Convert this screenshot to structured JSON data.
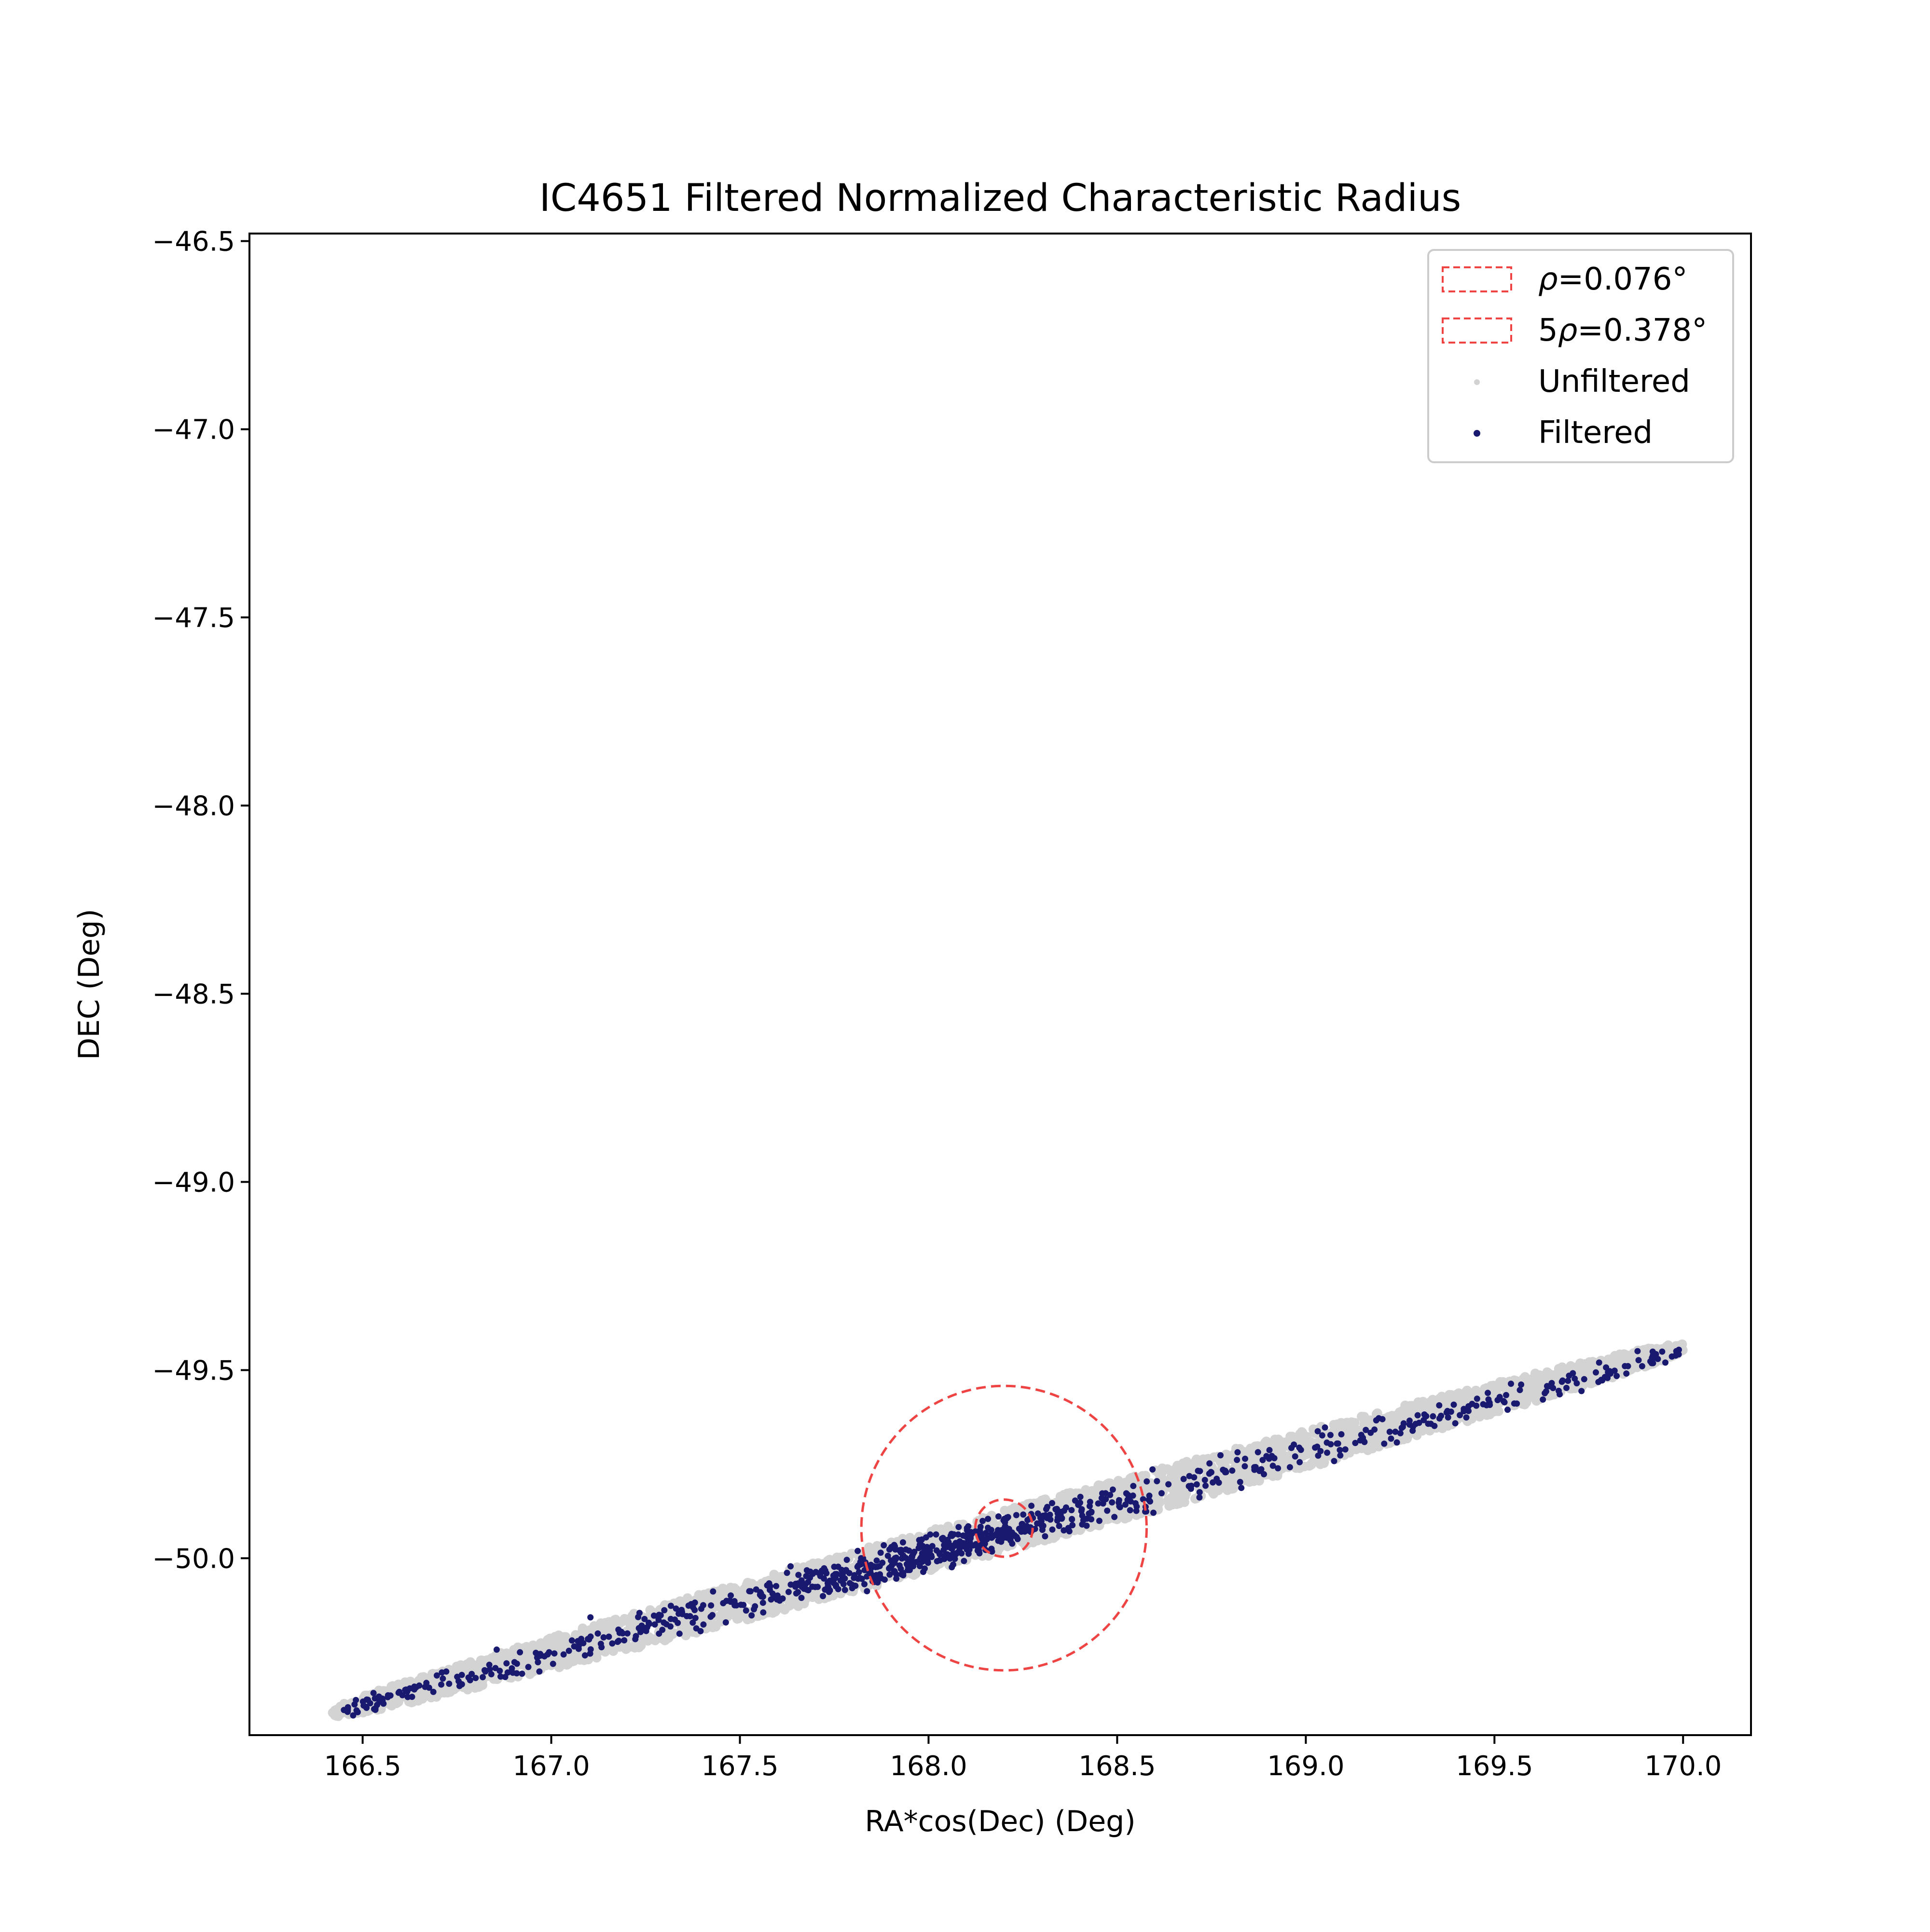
{
  "chart_data": {
    "type": "scatter",
    "title": "IC4651 Filtered Normalized Characteristic Radius",
    "xlabel": "RA*cos(Dec) (Deg)",
    "ylabel": "DEC (Deg)",
    "xlim": [
      166.2,
      170.18
    ],
    "ylim": [
      -50.47,
      -46.48
    ],
    "xticks": [
      166.5,
      167.0,
      167.5,
      168.0,
      168.5,
      169.0,
      169.5,
      170.0
    ],
    "xtick_labels": [
      "166.5",
      "167.0",
      "167.5",
      "168.0",
      "168.5",
      "169.0",
      "169.5",
      "170.0"
    ],
    "yticks": [
      -46.5,
      -47.0,
      -47.5,
      -48.0,
      -48.5,
      -49.0,
      -49.5,
      -50.0
    ],
    "ytick_labels": [
      "−46.5",
      "−47.0",
      "−47.5",
      "−48.0",
      "−48.5",
      "−49.0",
      "−49.5",
      "−50.0"
    ],
    "grid": false,
    "legend_position": "top-right",
    "legend": [
      {
        "kind": "dashed-patch",
        "label_main": "ρ=0.076°",
        "label_prefix": "",
        "label_symbol": "ρ",
        "label_rest": "=0.076°",
        "color": "#ee4444"
      },
      {
        "kind": "dashed-patch",
        "label_main": "5ρ=0.378°",
        "label_prefix": "5",
        "label_symbol": "ρ",
        "label_rest": "=0.378°",
        "color": "#ee4444"
      },
      {
        "kind": "point",
        "label_main": "Unfiltered",
        "color": "#d3d3d3"
      },
      {
        "kind": "point",
        "label_main": "Filtered",
        "color": "#191970"
      }
    ],
    "circles": [
      {
        "name": "rho",
        "center": [
          168.2,
          -49.92
        ],
        "radius": 0.076,
        "color": "#ee4444",
        "style": "dashed"
      },
      {
        "name": "5rho",
        "center": [
          168.2,
          -49.92
        ],
        "radius": 0.378,
        "color": "#ee4444",
        "style": "dashed"
      }
    ],
    "series": [
      {
        "name": "Unfiltered",
        "color": "#d3d3d3",
        "distribution": "elongated band",
        "endpoints": [
          [
            166.42,
            -50.41
          ],
          [
            170.0,
            -49.44
          ]
        ],
        "half_width_dec": 0.055,
        "count": 3000
      },
      {
        "name": "Filtered",
        "color": "#191970",
        "distribution": "elongated band, concentrated near center",
        "endpoints": [
          [
            166.45,
            -50.4
          ],
          [
            170.0,
            -49.45
          ]
        ],
        "center": [
          168.05,
          -49.95
        ],
        "half_width_dec": 0.05,
        "count": 900
      }
    ]
  }
}
